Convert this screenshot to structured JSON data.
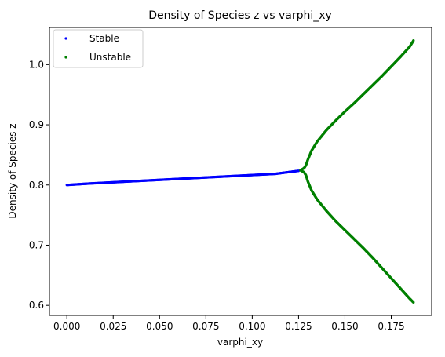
{
  "chart_data": {
    "type": "scatter",
    "title": "Density of Species z vs varphi_xy",
    "xlabel": "varphi_xy",
    "ylabel": "Density of Species z",
    "xlim": [
      -0.0094,
      0.1968
    ],
    "ylim": [
      0.5833,
      1.0617
    ],
    "xticks": [
      0.0,
      0.025,
      0.05,
      0.075,
      0.1,
      0.125,
      0.15,
      0.175
    ],
    "xtick_labels": [
      "0.000",
      "0.025",
      "0.050",
      "0.075",
      "0.100",
      "0.125",
      "0.150",
      "0.175"
    ],
    "yticks": [
      0.6,
      0.7,
      0.8,
      0.9,
      1.0
    ],
    "ytick_labels": [
      "0.6",
      "0.7",
      "0.8",
      "0.9",
      "1.0"
    ],
    "grid": false,
    "legend": "top-left",
    "series": [
      {
        "name": "Stable",
        "color": "#0000ff",
        "points": [
          [
            0.0,
            0.8
          ],
          [
            0.0125,
            0.8025
          ],
          [
            0.025,
            0.8045
          ],
          [
            0.0375,
            0.8065
          ],
          [
            0.05,
            0.8085
          ],
          [
            0.0625,
            0.8105
          ],
          [
            0.075,
            0.8125
          ],
          [
            0.0875,
            0.8145
          ],
          [
            0.1,
            0.8165
          ],
          [
            0.1125,
            0.8185
          ],
          [
            0.125,
            0.8235
          ]
        ]
      },
      {
        "name": "Unstable",
        "color": "#008000",
        "points": [
          [
            0.126,
            0.8245
          ],
          [
            0.128,
            0.828
          ],
          [
            0.129,
            0.833
          ],
          [
            0.13,
            0.842
          ],
          [
            0.132,
            0.857
          ],
          [
            0.135,
            0.872
          ],
          [
            0.14,
            0.891
          ],
          [
            0.145,
            0.907
          ],
          [
            0.15,
            0.922
          ],
          [
            0.155,
            0.936
          ],
          [
            0.16,
            0.951
          ],
          [
            0.165,
            0.966
          ],
          [
            0.17,
            0.981
          ],
          [
            0.175,
            0.997
          ],
          [
            0.18,
            1.013
          ],
          [
            0.185,
            1.03
          ],
          [
            0.187,
            1.04
          ],
          [
            0.128,
            0.821
          ],
          [
            0.129,
            0.816
          ],
          [
            0.13,
            0.806
          ],
          [
            0.132,
            0.791
          ],
          [
            0.135,
            0.776
          ],
          [
            0.14,
            0.757
          ],
          [
            0.145,
            0.74
          ],
          [
            0.15,
            0.725
          ],
          [
            0.155,
            0.71
          ],
          [
            0.16,
            0.695
          ],
          [
            0.165,
            0.679
          ],
          [
            0.17,
            0.662
          ],
          [
            0.175,
            0.645
          ],
          [
            0.18,
            0.628
          ],
          [
            0.185,
            0.611
          ],
          [
            0.187,
            0.605
          ]
        ]
      }
    ]
  }
}
